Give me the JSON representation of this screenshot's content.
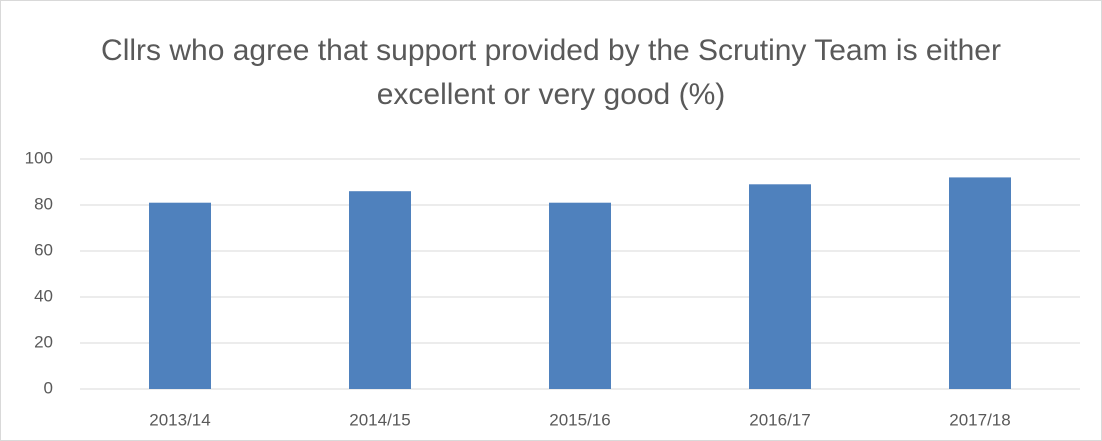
{
  "chart_data": {
    "type": "bar",
    "title": "Cllrs who agree that support provided by the Scrutiny Team is either excellent or very good (%)",
    "categories": [
      "2013/14",
      "2014/15",
      "2015/16",
      "2016/17",
      "2017/18"
    ],
    "values": [
      81,
      86,
      81,
      89,
      92
    ],
    "color": "#4f81bd",
    "ylim": [
      0,
      100
    ],
    "yticks": [
      0,
      20,
      40,
      60,
      80,
      100
    ],
    "grid": true
  }
}
